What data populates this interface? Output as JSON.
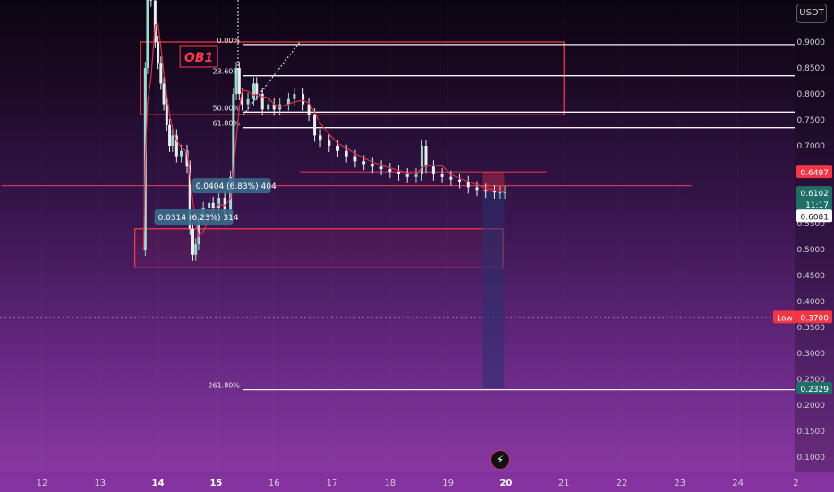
{
  "unit": "USDT",
  "low_label": "Low",
  "ob_label": "OB1",
  "colors": {
    "candle_up": "#9fd8d0",
    "candle_down": "#e8eef0",
    "ma_line": "#d8334a",
    "ob_box": "#ff3a4a",
    "fib_line": "#f2f2f2",
    "price_tag_red": "#f23645",
    "price_tag_teal": "#1f6f68"
  },
  "chart_data": {
    "type": "candlestick",
    "ylim": [
      0.07,
      1.0
    ],
    "y_ticks": [
      "0.9000",
      "0.8500",
      "0.8000",
      "0.7500",
      "0.7000",
      "0.6500",
      "0.6000",
      "0.5500",
      "0.5000",
      "0.4500",
      "0.4000",
      "0.3500",
      "0.3000",
      "0.2500",
      "0.2000",
      "0.1500",
      "0.1000"
    ],
    "x_ticks": [
      "12",
      "13",
      "14",
      "15",
      "16",
      "17",
      "18",
      "19",
      "20",
      "21",
      "22",
      "23",
      "24",
      "2"
    ],
    "bold_x_ticks": [
      "14",
      "15",
      "20"
    ],
    "price_series": [
      [
        13.75,
        0.5
      ],
      [
        13.78,
        0.85
      ],
      [
        13.82,
        1.0
      ],
      [
        13.88,
        0.98
      ],
      [
        13.95,
        0.9
      ],
      [
        14.0,
        0.86
      ],
      [
        14.05,
        0.82
      ],
      [
        14.1,
        0.78
      ],
      [
        14.15,
        0.74
      ],
      [
        14.2,
        0.7
      ],
      [
        14.25,
        0.72
      ],
      [
        14.32,
        0.68
      ],
      [
        14.4,
        0.69
      ],
      [
        14.5,
        0.66
      ],
      [
        14.55,
        0.54
      ],
      [
        14.6,
        0.49
      ],
      [
        14.65,
        0.51
      ],
      [
        14.7,
        0.56
      ],
      [
        14.78,
        0.58
      ],
      [
        14.88,
        0.59
      ],
      [
        14.95,
        0.58
      ],
      [
        15.05,
        0.6
      ],
      [
        15.15,
        0.57
      ],
      [
        15.25,
        0.64
      ],
      [
        15.3,
        0.8
      ],
      [
        15.35,
        0.85
      ],
      [
        15.4,
        0.8
      ],
      [
        15.45,
        0.78
      ],
      [
        15.55,
        0.79
      ],
      [
        15.65,
        0.82
      ],
      [
        15.7,
        0.8
      ],
      [
        15.8,
        0.77
      ],
      [
        15.9,
        0.78
      ],
      [
        16.0,
        0.77
      ],
      [
        16.1,
        0.78
      ],
      [
        16.25,
        0.79
      ],
      [
        16.35,
        0.8
      ],
      [
        16.5,
        0.78
      ],
      [
        16.6,
        0.76
      ],
      [
        16.7,
        0.72
      ],
      [
        16.8,
        0.71
      ],
      [
        16.95,
        0.7
      ],
      [
        17.1,
        0.69
      ],
      [
        17.25,
        0.68
      ],
      [
        17.4,
        0.67
      ],
      [
        17.55,
        0.665
      ],
      [
        17.7,
        0.66
      ],
      [
        17.85,
        0.655
      ],
      [
        18.0,
        0.65
      ],
      [
        18.15,
        0.645
      ],
      [
        18.3,
        0.64
      ],
      [
        18.45,
        0.645
      ],
      [
        18.55,
        0.7
      ],
      [
        18.62,
        0.66
      ],
      [
        18.75,
        0.645
      ],
      [
        18.9,
        0.64
      ],
      [
        19.05,
        0.635
      ],
      [
        19.2,
        0.63
      ],
      [
        19.35,
        0.62
      ],
      [
        19.5,
        0.615
      ],
      [
        19.65,
        0.612
      ],
      [
        19.8,
        0.61
      ],
      [
        19.9,
        0.61
      ],
      [
        19.98,
        0.6102
      ]
    ],
    "fib_levels": [
      {
        "label": "0.00%",
        "price": 0.895
      },
      {
        "label": "23.60%",
        "price": 0.835
      },
      {
        "label": "50.00%",
        "price": 0.765
      },
      {
        "label": "61.80%",
        "price": 0.735
      },
      {
        "label": "261.80%",
        "price": 0.23
      }
    ],
    "order_blocks": [
      {
        "label": "OB1",
        "x_start": 13.7,
        "x_end": 21.0,
        "y_top": 0.9,
        "y_bottom": 0.76
      },
      {
        "label": "",
        "x_start": 13.6,
        "x_end": 19.95,
        "y_top": 0.54,
        "y_bottom": 0.466
      }
    ],
    "measure_labels": [
      {
        "text": "0.0404 (6.83%) 404",
        "x": 14.65,
        "price": 0.617
      },
      {
        "text": "0.0314 (6.23%) 314",
        "x": 14.0,
        "price": 0.557
      }
    ],
    "hlines": [
      {
        "price": 0.6497,
        "x_start": 16.45,
        "x_end": 20.7,
        "color": "red"
      },
      {
        "price": 0.623,
        "x_start": 11.3,
        "x_end": 23.2,
        "color": "red"
      }
    ],
    "price_tags": [
      {
        "text": "0.6497",
        "price": 0.6497,
        "style": "red"
      },
      {
        "text": "0.6102",
        "price": 0.6102,
        "style": "teal"
      },
      {
        "text": "11:17",
        "price": 0.588,
        "style": "teal"
      },
      {
        "text": "0.6081",
        "price": 0.565,
        "style": "white"
      },
      {
        "text": "0.3700",
        "price": 0.37,
        "style": "red"
      },
      {
        "text": "0.2329",
        "price": 0.2329,
        "style": "teal"
      }
    ],
    "short_position": {
      "x_start": 19.6,
      "x_end": 19.97,
      "entry": 0.6102,
      "stop": 0.6497,
      "target": 0.2329
    },
    "low_line_price": 0.37
  }
}
